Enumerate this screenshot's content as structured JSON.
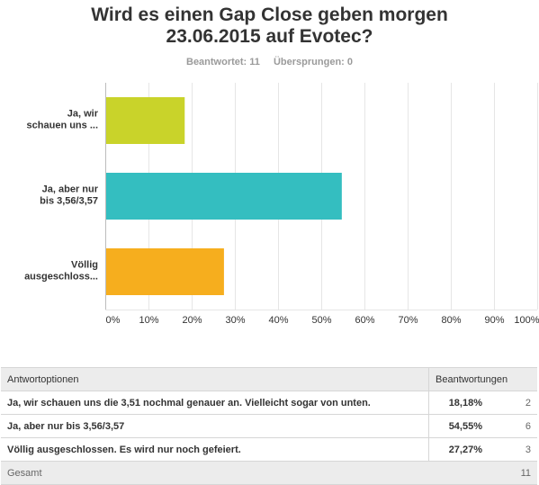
{
  "header": {
    "title_line1": "Wird es einen Gap Close geben morgen",
    "title_line2": "23.06.2015 auf Evotec?",
    "answered": "Beantwortet: 11",
    "skipped": "Übersprungen: 0"
  },
  "chart_data": {
    "type": "bar",
    "orientation": "horizontal",
    "categories": [
      [
        "Ja, wir",
        "schauen uns ..."
      ],
      [
        "Ja, aber nur",
        "bis 3,56/3,57"
      ],
      [
        "Völlig",
        "ausgeschloss..."
      ]
    ],
    "values": [
      18.18,
      54.55,
      27.27
    ],
    "colors": [
      "#c9d32a",
      "#34bec0",
      "#f6ae1e"
    ],
    "xlim": [
      0,
      100
    ],
    "xticks": [
      "0%",
      "10%",
      "20%",
      "30%",
      "40%",
      "50%",
      "60%",
      "70%",
      "80%",
      "90%",
      "100%"
    ],
    "grid": true
  },
  "table": {
    "col_options": "Antwortoptionen",
    "col_responses": "Beantwortungen",
    "rows": [
      {
        "option": "Ja, wir schauen uns die 3,51 nochmal genauer an. Vielleicht sogar von unten.",
        "percent": "18,18%",
        "count": "2"
      },
      {
        "option": "Ja, aber nur bis 3,56/3,57",
        "percent": "54,55%",
        "count": "6"
      },
      {
        "option": "Völlig ausgeschlossen. Es wird nur noch gefeiert.",
        "percent": "27,27%",
        "count": "3"
      }
    ],
    "total_label": "Gesamt",
    "total_count": "11"
  }
}
